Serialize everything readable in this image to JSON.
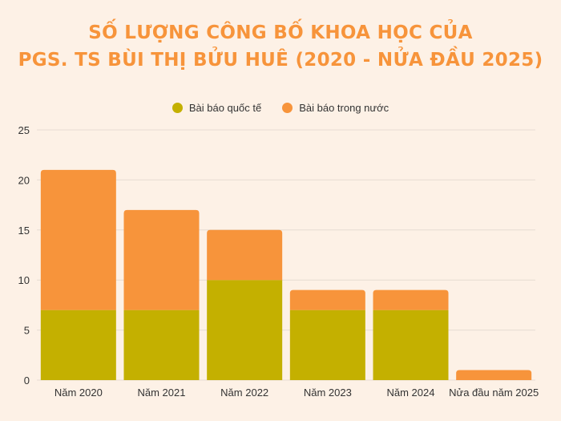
{
  "title_lines": [
    "SỐ LƯỢNG CÔNG BỐ KHOA HỌC CỦA",
    "PGS. TS BÙI THỊ BỬU HUÊ (2020 - NỬA ĐẦU 2025)"
  ],
  "colors": {
    "background": "#fdf1e6",
    "international": "#c4b000",
    "domestic": "#f7943b",
    "grid": "#e6dcd2"
  },
  "chart_data": {
    "type": "bar",
    "stacked": true,
    "categories": [
      "Năm 2020",
      "Năm 2021",
      "Năm 2022",
      "Năm 2023",
      "Năm 2024",
      "Nửa đầu năm 2025"
    ],
    "series": [
      {
        "name": "Bài báo quốc tế",
        "values": [
          7,
          7,
          10,
          7,
          7,
          0
        ]
      },
      {
        "name": "Bài báo trong nước",
        "values": [
          14,
          10,
          5,
          2,
          2,
          1
        ]
      }
    ],
    "ylim": [
      0,
      25
    ],
    "yticks": [
      0,
      5,
      10,
      15,
      20,
      25
    ],
    "grid": true,
    "legend_position": "top"
  }
}
